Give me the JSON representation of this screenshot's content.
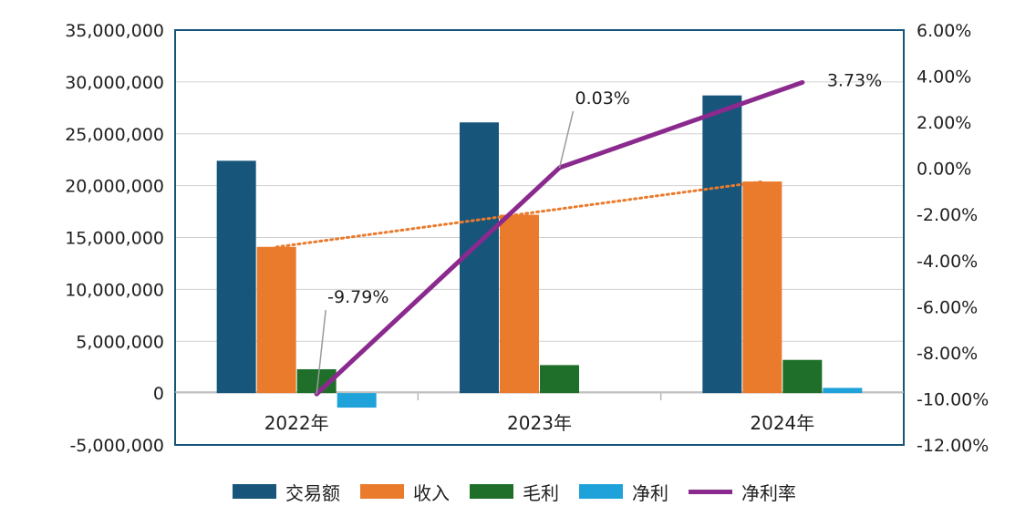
{
  "chart_data": {
    "type": "bar",
    "categories": [
      "2022年",
      "2023年",
      "2024年"
    ],
    "series": [
      {
        "name": "交易额",
        "values": [
          22400000,
          26100000,
          28700000
        ],
        "color": "#17557b",
        "axis": "left"
      },
      {
        "name": "收入",
        "values": [
          14100000,
          17200000,
          20400000
        ],
        "color": "#ea7a2c",
        "axis": "left"
      },
      {
        "name": "毛利",
        "values": [
          2300000,
          2700000,
          3200000
        ],
        "color": "#1f6f2a",
        "axis": "left"
      },
      {
        "name": "净利",
        "values": [
          -1400000,
          0,
          500000
        ],
        "color": "#1ea2d9",
        "axis": "left"
      },
      {
        "name": "净利率",
        "type": "line",
        "values": [
          -9.79,
          0.03,
          3.73
        ],
        "color": "#8b2a8e",
        "axis": "right"
      }
    ],
    "trendline": {
      "of": "收入",
      "style": "dotted",
      "color": "#ea7a2c"
    },
    "data_labels": [
      "-9.79%",
      "0.03%",
      "3.73%"
    ],
    "y_left": {
      "ylim": [
        -5000000,
        35000000
      ],
      "ticks": [
        "35,000,000",
        "30,000,000",
        "25,000,000",
        "20,000,000",
        "15,000,000",
        "10,000,000",
        "5,000,000",
        "0",
        "-5,000,000"
      ]
    },
    "y_right": {
      "ylim": [
        -12,
        6
      ],
      "ticks": [
        "6.00%",
        "4.00%",
        "2.00%",
        "0.00%",
        "-2.00%",
        "-4.00%",
        "-6.00%",
        "-8.00%",
        "-10.00%",
        "-12.00%"
      ]
    },
    "grid": true,
    "legend_position": "bottom"
  }
}
